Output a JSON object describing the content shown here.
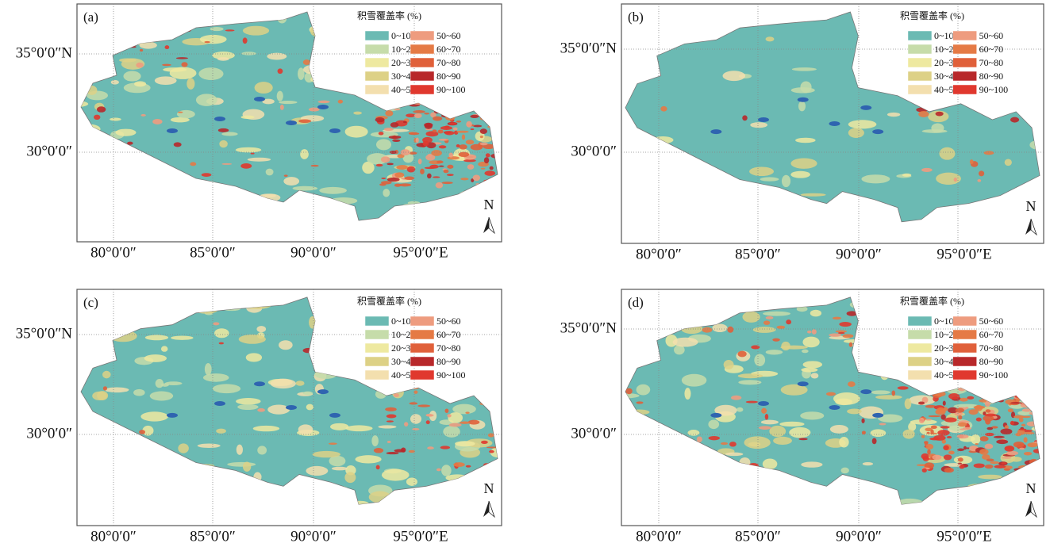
{
  "legend": {
    "title": "积雪覆盖率 (%)",
    "items": [
      {
        "label": "0~10",
        "color": "#6bbab3"
      },
      {
        "label": "10~20",
        "color": "#c6dcaa"
      },
      {
        "label": "20~30",
        "color": "#eee9a0"
      },
      {
        "label": "30~40",
        "color": "#ddd186"
      },
      {
        "label": "40~50",
        "color": "#f3dfae"
      },
      {
        "label": "50~60",
        "color": "#ee9c7f"
      },
      {
        "label": "60~70",
        "color": "#e57a45"
      },
      {
        "label": "70~80",
        "color": "#e0603a"
      },
      {
        "label": "80~90",
        "color": "#b8282a"
      },
      {
        "label": "90~100",
        "color": "#e0382e"
      }
    ]
  },
  "lat_labels": [
    "35°0′0″N",
    "30°0′0″"
  ],
  "lon_labels": [
    "80°0′0″",
    "85°0′0″",
    "90°0′0″",
    "95°0′0″E"
  ],
  "north": "N",
  "panels": [
    {
      "label": "(a)"
    },
    {
      "label": "(b)"
    },
    {
      "label": "(c)"
    },
    {
      "label": "(d)"
    }
  ]
}
